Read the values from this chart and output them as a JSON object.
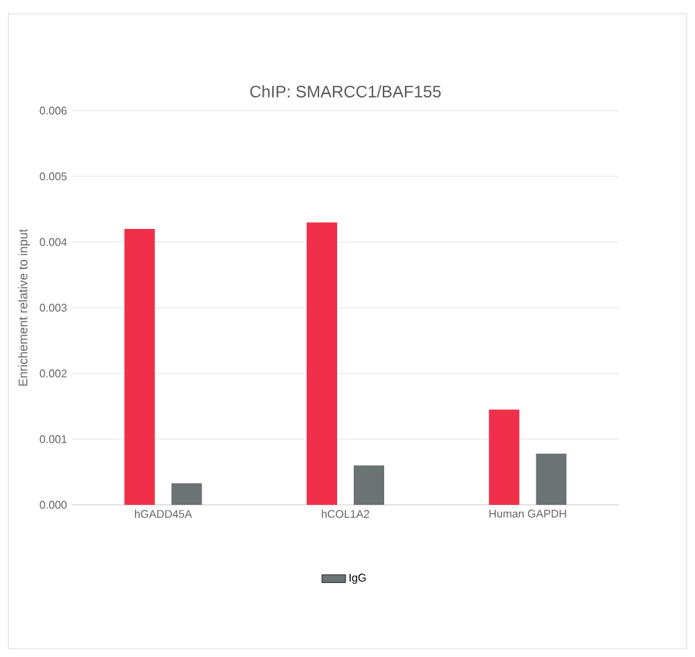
{
  "chart_data": {
    "type": "bar",
    "title": "ChIP: SMARCC1/BAF155",
    "ylabel": "Enrichement relative to input",
    "categories": [
      "hGADD45A",
      "hCOL1A2",
      "Human GAPDH"
    ],
    "series": [
      {
        "color": "#f0304a",
        "values": [
          0.0042,
          0.0043,
          0.00145
        ]
      },
      {
        "name": "IgG",
        "color": "#6b7374",
        "values": [
          0.00033,
          0.0006,
          0.00078
        ]
      }
    ],
    "ylim": [
      0,
      0.006
    ],
    "yticks": [
      {
        "value": 0,
        "label": "0.000"
      },
      {
        "value": 0.001,
        "label": "0.001"
      },
      {
        "value": 0.002,
        "label": "0.002"
      },
      {
        "value": 0.003,
        "label": "0.003"
      },
      {
        "value": 0.004,
        "label": "0.004"
      },
      {
        "value": 0.005,
        "label": "0.005"
      },
      {
        "value": 0.006,
        "label": "0.006"
      }
    ],
    "grid": "y",
    "legend": "bottom"
  }
}
